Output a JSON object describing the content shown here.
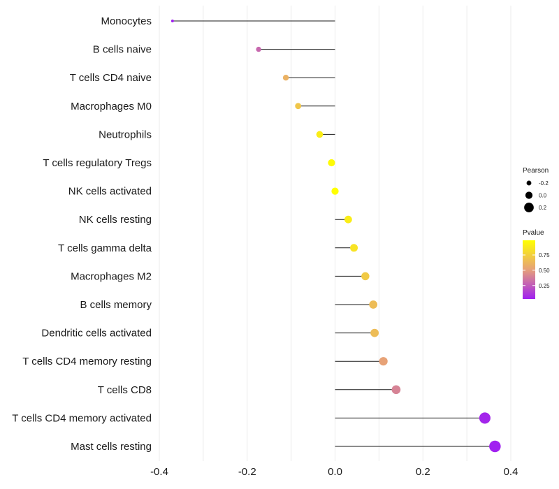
{
  "chart_data": {
    "type": "lollipop",
    "title": "",
    "xlabel": "",
    "ylabel": "",
    "xlim": [
      -0.4,
      0.4
    ],
    "x_ticks": [
      -0.4,
      -0.2,
      0.0,
      0.2,
      0.4
    ],
    "x_tick_labels": [
      "-0.4",
      "-0.2",
      "0.0",
      "0.2",
      "0.4"
    ],
    "minor_x_ticks": [
      -0.3,
      -0.1,
      0.1,
      0.3
    ],
    "grid": true,
    "baseline": 0,
    "categories": [
      "Monocytes",
      "B cells naive",
      "T cells CD4 naive",
      "Macrophages M0",
      "Neutrophils",
      "T cells regulatory  Tregs",
      "NK cells activated",
      "NK cells resting",
      "T cells gamma delta",
      "Macrophages M2",
      "B cells memory",
      "Dendritic cells activated",
      "T cells CD4 memory resting",
      "T cells CD8",
      "T cells CD4 memory activated",
      "Mast cells resting"
    ],
    "pearson": [
      -0.37,
      -0.174,
      -0.112,
      -0.084,
      -0.035,
      -0.008,
      0.0,
      0.03,
      0.043,
      0.069,
      0.087,
      0.09,
      0.11,
      0.139,
      0.341,
      0.364
    ],
    "pvalue": [
      0.02,
      0.3,
      0.6,
      0.7,
      0.9,
      0.97,
      1.0,
      0.9,
      0.85,
      0.72,
      0.65,
      0.65,
      0.52,
      0.4,
      0.05,
      0.03
    ],
    "legend_size": {
      "title": "Pearson",
      "entries": [
        {
          "label": "-0.2",
          "value": -0.2
        },
        {
          "label": "0.0",
          "value": 0.0
        },
        {
          "label": "0.2",
          "value": 0.2
        }
      ]
    },
    "legend_color": {
      "title": "Pvalue",
      "range": [
        0.03,
        0.99
      ],
      "low_color": "#a020f0",
      "mid_color": "#e6a07a",
      "high_color": "#ffff00",
      "ticks": [
        {
          "label": "0.75",
          "value": 0.75
        },
        {
          "label": "0.50",
          "value": 0.5
        },
        {
          "label": "0.25",
          "value": 0.25
        }
      ]
    },
    "legend_placement": "right"
  }
}
